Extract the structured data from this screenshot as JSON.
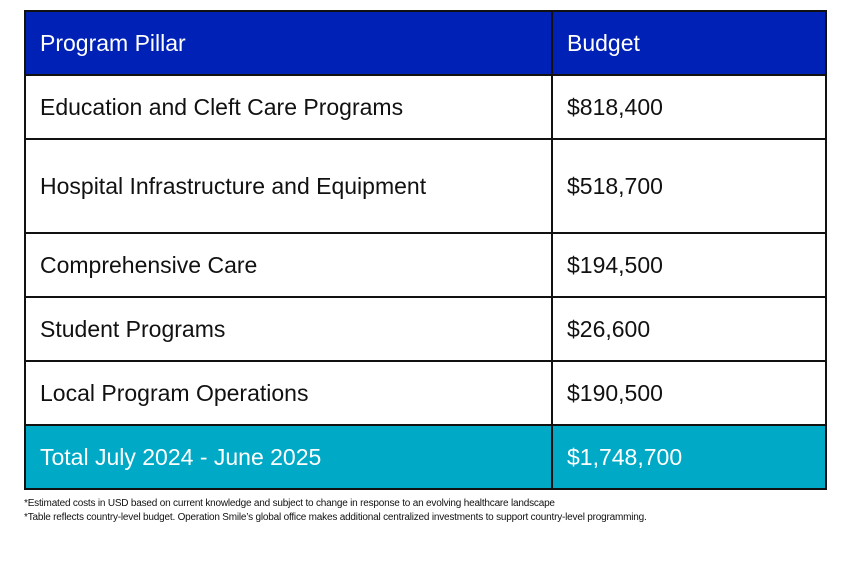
{
  "table": {
    "headers": [
      "Program Pillar",
      "Budget"
    ],
    "rows": [
      {
        "pillar": "Education and Cleft Care Programs",
        "budget": "$818,400"
      },
      {
        "pillar": "Hospital Infrastructure and Equipment",
        "budget": "$518,700"
      },
      {
        "pillar": "Comprehensive Care",
        "budget": "$194,500"
      },
      {
        "pillar": "Student Programs",
        "budget": "$26,600"
      },
      {
        "pillar": "Local Program Operations",
        "budget": "$190,500"
      }
    ],
    "total": {
      "label": "Total July 2024 - June 2025",
      "budget": "$1,748,700"
    }
  },
  "footnotes": [
    "*Estimated costs in USD based on current knowledge and subject to change in response to an evolving healthcare landscape",
    "*Table reflects country-level budget. Operation Smile’s global office makes additional centralized investments to support country-level programming."
  ],
  "colors": {
    "header": "#0021b5",
    "total": "#00a9c6"
  }
}
